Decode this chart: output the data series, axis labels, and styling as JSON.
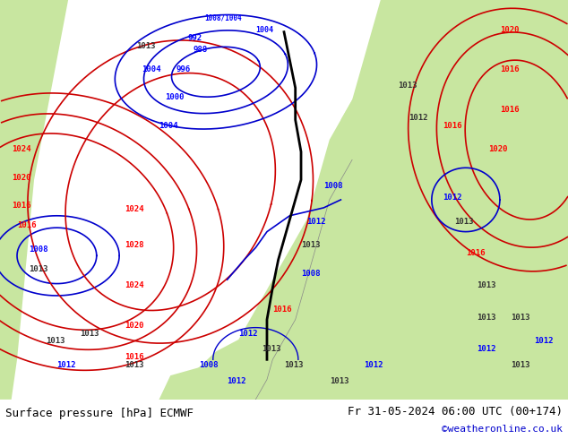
{
  "title_left": "Surface pressure [hPa] ECMWF",
  "title_right": "Fr 31-05-2024 06:00 UTC (00+174)",
  "copyright": "©weatheronline.co.uk",
  "bg_color": "#e8e8e8",
  "map_bg_land": "#c8e6a0",
  "map_bg_sea": "#c8dff0",
  "bottom_bar_color": "#ffffff",
  "bottom_text_color": "#000000",
  "copyright_color": "#0000cc",
  "fig_width": 6.34,
  "fig_height": 4.9,
  "dpi": 100
}
